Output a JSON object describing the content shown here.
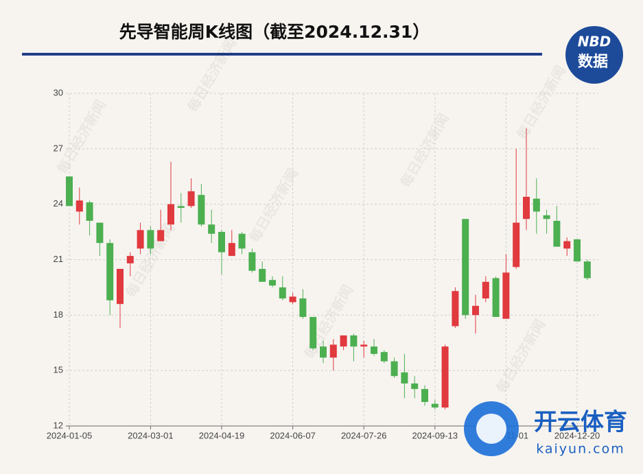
{
  "chart_data": {
    "type": "candlestick",
    "title": "先导智能周K线图（截至2024.12.31）",
    "logo": {
      "top": "NBD",
      "bottom": "数据"
    },
    "watermark": "每日经济新闻",
    "overlay": {
      "brand": "开云体育",
      "site": "kaiyun.com"
    },
    "up_color": "#e0393e",
    "down_color": "#4caf50",
    "grid": true,
    "categories": [
      "2024-01-05",
      null,
      null,
      null,
      null,
      null,
      null,
      null,
      "2024-03-01",
      null,
      null,
      null,
      null,
      null,
      null,
      "2024-04-19",
      null,
      null,
      null,
      null,
      null,
      null,
      "2024-06-07",
      null,
      null,
      null,
      null,
      null,
      null,
      "2024-07-26",
      null,
      null,
      null,
      null,
      null,
      null,
      "2024-09-13",
      null,
      null,
      null,
      null,
      null,
      null,
      "2024-11-01",
      null,
      null,
      null,
      null,
      null,
      null,
      "2024-12-20",
      null
    ],
    "open": [
      25.5,
      23.6,
      24.1,
      23.0,
      21.9,
      18.6,
      20.8,
      21.6,
      22.6,
      22.0,
      22.9,
      23.9,
      23.9,
      24.5,
      22.9,
      22.5,
      21.2,
      22.4,
      21.4,
      20.5,
      19.9,
      19.5,
      18.7,
      18.9,
      17.9,
      16.3,
      15.7,
      16.3,
      16.9,
      16.3,
      16.3,
      16.0,
      15.5,
      14.9,
      14.3,
      14.0,
      13.2,
      13.0,
      17.4,
      23.2,
      18.0,
      18.9,
      20.0,
      17.8,
      20.6,
      23.2,
      24.3,
      23.4,
      23.1,
      21.6,
      22.1,
      20.9
    ],
    "close": [
      23.9,
      24.2,
      23.1,
      21.9,
      18.8,
      20.5,
      21.2,
      22.6,
      21.6,
      22.6,
      24.0,
      23.8,
      24.7,
      22.9,
      22.4,
      21.4,
      21.9,
      21.6,
      20.4,
      19.8,
      19.6,
      18.9,
      19.0,
      17.9,
      16.2,
      15.7,
      16.4,
      16.9,
      16.3,
      16.4,
      15.9,
      15.5,
      14.7,
      14.3,
      14.0,
      13.3,
      13.0,
      16.3,
      19.3,
      18.0,
      18.5,
      19.8,
      17.9,
      20.3,
      23.0,
      24.4,
      23.6,
      23.2,
      21.7,
      22.0,
      20.9,
      20.0
    ],
    "high": [
      25.5,
      24.9,
      24.2,
      23.0,
      22.1,
      20.5,
      21.4,
      23.0,
      22.8,
      23.7,
      26.3,
      24.6,
      25.4,
      25.1,
      23.7,
      22.6,
      22.6,
      22.5,
      21.6,
      20.9,
      20.1,
      20.1,
      19.2,
      19.4,
      17.9,
      16.6,
      16.7,
      16.9,
      17.0,
      16.6,
      16.7,
      16.1,
      15.7,
      15.9,
      14.7,
      14.2,
      13.4,
      16.4,
      19.5,
      23.2,
      19.1,
      20.1,
      20.1,
      21.3,
      27.0,
      28.1,
      25.4,
      23.7,
      23.9,
      22.2,
      22.1,
      21.0
    ],
    "low": [
      23.9,
      22.9,
      22.3,
      21.2,
      18.0,
      17.3,
      20.1,
      21.3,
      21.3,
      22.0,
      22.6,
      23.0,
      23.8,
      22.8,
      21.9,
      20.2,
      21.2,
      21.3,
      20.3,
      19.8,
      19.5,
      18.8,
      18.6,
      17.8,
      16.1,
      15.4,
      15.0,
      16.1,
      15.5,
      15.7,
      15.8,
      15.4,
      14.6,
      13.5,
      13.5,
      13.1,
      12.9,
      12.9,
      17.3,
      17.8,
      17.0,
      18.7,
      17.9,
      17.8,
      20.5,
      22.6,
      22.4,
      22.4,
      21.7,
      21.2,
      20.9,
      19.9
    ],
    "ylim": [
      12,
      30
    ],
    "yticks": [
      12,
      15,
      18,
      21,
      24,
      27,
      30
    ]
  }
}
